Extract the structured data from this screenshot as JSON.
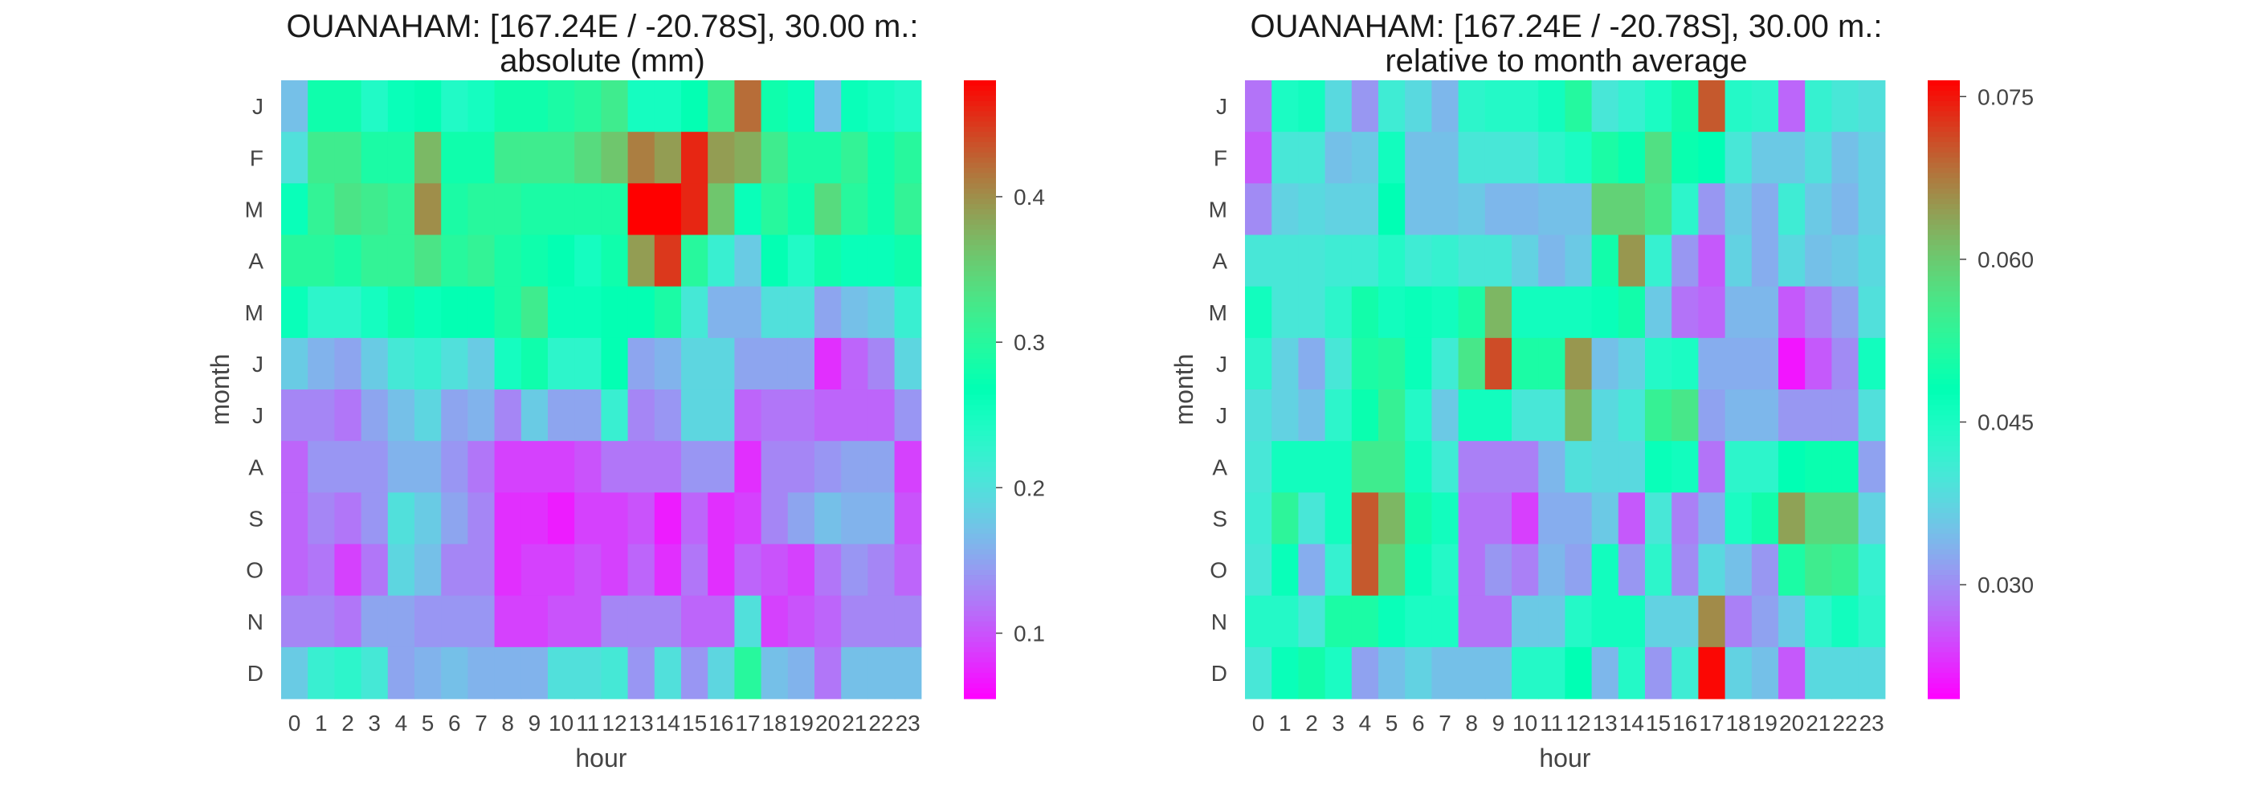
{
  "figure": {
    "background": "#ffffff"
  },
  "chart_data": [
    {
      "type": "heatmap",
      "title_line1": "OUANAHAM: [167.24E / -20.78S], 30.00 m.:",
      "title_line2": "absolute (mm)",
      "xlabel": "hour",
      "ylabel": "month",
      "x": [
        "0",
        "1",
        "2",
        "3",
        "4",
        "5",
        "6",
        "7",
        "8",
        "9",
        "10",
        "11",
        "12",
        "13",
        "14",
        "15",
        "16",
        "17",
        "18",
        "19",
        "20",
        "21",
        "22",
        "23"
      ],
      "y": [
        "J",
        "F",
        "M",
        "A",
        "M",
        "J",
        "J",
        "A",
        "S",
        "O",
        "N",
        "D"
      ],
      "colormap": "rainbow",
      "vmin": 0.055,
      "vmax": 0.48,
      "colorbar_ticks": [
        0.1,
        0.2,
        0.3,
        0.4
      ],
      "colorbar_tick_labels": [
        "0.1",
        "0.2",
        "0.3",
        "0.4"
      ],
      "values": [
        [
          0.17,
          0.28,
          0.28,
          0.24,
          0.26,
          0.27,
          0.24,
          0.25,
          0.28,
          0.28,
          0.29,
          0.3,
          0.32,
          0.25,
          0.25,
          0.27,
          0.32,
          0.42,
          0.28,
          0.26,
          0.17,
          0.26,
          0.25,
          0.24
        ],
        [
          0.2,
          0.32,
          0.32,
          0.29,
          0.29,
          0.37,
          0.28,
          0.28,
          0.32,
          0.32,
          0.32,
          0.34,
          0.36,
          0.41,
          0.39,
          0.46,
          0.39,
          0.38,
          0.32,
          0.29,
          0.29,
          0.31,
          0.28,
          0.3
        ],
        [
          0.26,
          0.31,
          0.33,
          0.32,
          0.31,
          0.4,
          0.29,
          0.3,
          0.3,
          0.29,
          0.29,
          0.29,
          0.29,
          0.48,
          0.48,
          0.46,
          0.36,
          0.26,
          0.3,
          0.28,
          0.34,
          0.3,
          0.28,
          0.31
        ],
        [
          0.3,
          0.3,
          0.29,
          0.31,
          0.31,
          0.33,
          0.3,
          0.31,
          0.29,
          0.28,
          0.27,
          0.25,
          0.28,
          0.39,
          0.45,
          0.3,
          0.22,
          0.18,
          0.27,
          0.24,
          0.28,
          0.26,
          0.26,
          0.28
        ],
        [
          0.26,
          0.23,
          0.23,
          0.25,
          0.28,
          0.26,
          0.27,
          0.27,
          0.29,
          0.32,
          0.26,
          0.26,
          0.27,
          0.27,
          0.29,
          0.21,
          0.16,
          0.16,
          0.2,
          0.2,
          0.15,
          0.17,
          0.18,
          0.22
        ],
        [
          0.18,
          0.16,
          0.15,
          0.18,
          0.21,
          0.22,
          0.2,
          0.18,
          0.25,
          0.28,
          0.23,
          0.23,
          0.27,
          0.15,
          0.16,
          0.19,
          0.19,
          0.15,
          0.15,
          0.15,
          0.08,
          0.11,
          0.13,
          0.19
        ],
        [
          0.13,
          0.13,
          0.12,
          0.15,
          0.17,
          0.19,
          0.15,
          0.16,
          0.13,
          0.18,
          0.15,
          0.15,
          0.22,
          0.13,
          0.14,
          0.19,
          0.19,
          0.11,
          0.12,
          0.12,
          0.11,
          0.11,
          0.11,
          0.14
        ],
        [
          0.11,
          0.14,
          0.14,
          0.14,
          0.16,
          0.16,
          0.14,
          0.12,
          0.09,
          0.09,
          0.09,
          0.1,
          0.12,
          0.12,
          0.12,
          0.14,
          0.14,
          0.08,
          0.13,
          0.13,
          0.14,
          0.15,
          0.15,
          0.09
        ],
        [
          0.11,
          0.13,
          0.12,
          0.14,
          0.2,
          0.18,
          0.15,
          0.13,
          0.08,
          0.08,
          0.07,
          0.09,
          0.09,
          0.1,
          0.07,
          0.11,
          0.08,
          0.09,
          0.13,
          0.15,
          0.17,
          0.16,
          0.16,
          0.1
        ],
        [
          0.11,
          0.12,
          0.09,
          0.12,
          0.19,
          0.17,
          0.13,
          0.13,
          0.08,
          0.09,
          0.09,
          0.1,
          0.09,
          0.11,
          0.08,
          0.12,
          0.08,
          0.11,
          0.1,
          0.09,
          0.12,
          0.14,
          0.13,
          0.11
        ],
        [
          0.13,
          0.13,
          0.12,
          0.15,
          0.15,
          0.14,
          0.14,
          0.14,
          0.09,
          0.09,
          0.1,
          0.1,
          0.13,
          0.13,
          0.13,
          0.11,
          0.11,
          0.2,
          0.09,
          0.1,
          0.11,
          0.13,
          0.13,
          0.13
        ],
        [
          0.18,
          0.22,
          0.23,
          0.21,
          0.15,
          0.16,
          0.17,
          0.16,
          0.16,
          0.16,
          0.2,
          0.2,
          0.21,
          0.14,
          0.2,
          0.14,
          0.19,
          0.3,
          0.17,
          0.16,
          0.12,
          0.17,
          0.17,
          0.17
        ]
      ]
    },
    {
      "type": "heatmap",
      "title_line1": "OUANAHAM: [167.24E / -20.78S], 30.00 m.:",
      "title_line2": "relative to month average",
      "xlabel": "hour",
      "ylabel": "month",
      "x": [
        "0",
        "1",
        "2",
        "3",
        "4",
        "5",
        "6",
        "7",
        "8",
        "9",
        "10",
        "11",
        "12",
        "13",
        "14",
        "15",
        "16",
        "17",
        "18",
        "19",
        "20",
        "21",
        "22",
        "23"
      ],
      "y": [
        "J",
        "F",
        "M",
        "A",
        "M",
        "J",
        "J",
        "A",
        "S",
        "O",
        "N",
        "D"
      ],
      "colormap": "rainbow",
      "vmin": 0.0195,
      "vmax": 0.0765,
      "colorbar_ticks": [
        0.03,
        0.045,
        0.06,
        0.075
      ],
      "colorbar_tick_labels": [
        "0.030",
        "0.045",
        "0.060",
        "0.075"
      ],
      "values": [
        [
          0.028,
          0.045,
          0.046,
          0.038,
          0.031,
          0.041,
          0.038,
          0.034,
          0.043,
          0.044,
          0.044,
          0.046,
          0.052,
          0.04,
          0.042,
          0.045,
          0.05,
          0.07,
          0.044,
          0.043,
          0.027,
          0.042,
          0.04,
          0.039
        ],
        [
          0.026,
          0.04,
          0.04,
          0.035,
          0.036,
          0.046,
          0.035,
          0.035,
          0.04,
          0.04,
          0.04,
          0.043,
          0.045,
          0.051,
          0.049,
          0.057,
          0.049,
          0.048,
          0.04,
          0.036,
          0.036,
          0.039,
          0.035,
          0.037
        ],
        [
          0.03,
          0.037,
          0.038,
          0.037,
          0.037,
          0.048,
          0.035,
          0.035,
          0.036,
          0.034,
          0.034,
          0.035,
          0.035,
          0.059,
          0.059,
          0.056,
          0.043,
          0.031,
          0.036,
          0.033,
          0.041,
          0.036,
          0.034,
          0.037
        ],
        [
          0.04,
          0.04,
          0.04,
          0.041,
          0.041,
          0.044,
          0.041,
          0.042,
          0.04,
          0.04,
          0.037,
          0.034,
          0.036,
          0.05,
          0.065,
          0.042,
          0.031,
          0.026,
          0.037,
          0.033,
          0.038,
          0.035,
          0.036,
          0.038
        ],
        [
          0.046,
          0.04,
          0.04,
          0.043,
          0.05,
          0.046,
          0.047,
          0.046,
          0.051,
          0.062,
          0.046,
          0.046,
          0.046,
          0.047,
          0.05,
          0.036,
          0.028,
          0.027,
          0.034,
          0.034,
          0.026,
          0.029,
          0.032,
          0.039
        ],
        [
          0.043,
          0.037,
          0.033,
          0.04,
          0.051,
          0.052,
          0.047,
          0.041,
          0.056,
          0.071,
          0.051,
          0.051,
          0.065,
          0.035,
          0.037,
          0.044,
          0.045,
          0.033,
          0.033,
          0.033,
          0.021,
          0.026,
          0.03,
          0.046
        ],
        [
          0.039,
          0.037,
          0.035,
          0.043,
          0.049,
          0.054,
          0.044,
          0.036,
          0.046,
          0.046,
          0.04,
          0.04,
          0.062,
          0.038,
          0.04,
          0.054,
          0.056,
          0.032,
          0.034,
          0.034,
          0.031,
          0.031,
          0.031,
          0.039
        ],
        [
          0.04,
          0.046,
          0.046,
          0.046,
          0.055,
          0.055,
          0.046,
          0.041,
          0.029,
          0.029,
          0.029,
          0.034,
          0.039,
          0.038,
          0.038,
          0.047,
          0.046,
          0.028,
          0.043,
          0.043,
          0.048,
          0.049,
          0.049,
          0.032
        ],
        [
          0.041,
          0.053,
          0.04,
          0.046,
          0.07,
          0.062,
          0.05,
          0.046,
          0.028,
          0.028,
          0.024,
          0.033,
          0.033,
          0.036,
          0.026,
          0.04,
          0.029,
          0.033,
          0.045,
          0.05,
          0.064,
          0.058,
          0.058,
          0.037
        ],
        [
          0.04,
          0.047,
          0.033,
          0.042,
          0.07,
          0.059,
          0.047,
          0.044,
          0.028,
          0.031,
          0.029,
          0.034,
          0.032,
          0.046,
          0.031,
          0.043,
          0.03,
          0.038,
          0.035,
          0.031,
          0.051,
          0.055,
          0.054,
          0.042
        ],
        [
          0.044,
          0.044,
          0.04,
          0.051,
          0.051,
          0.047,
          0.045,
          0.045,
          0.028,
          0.028,
          0.036,
          0.036,
          0.044,
          0.046,
          0.046,
          0.037,
          0.037,
          0.066,
          0.029,
          0.032,
          0.036,
          0.043,
          0.046,
          0.043
        ],
        [
          0.04,
          0.047,
          0.05,
          0.045,
          0.032,
          0.035,
          0.037,
          0.035,
          0.035,
          0.035,
          0.044,
          0.044,
          0.048,
          0.034,
          0.044,
          0.031,
          0.041,
          0.076,
          0.037,
          0.035,
          0.026,
          0.038,
          0.038,
          0.038
        ]
      ]
    }
  ]
}
